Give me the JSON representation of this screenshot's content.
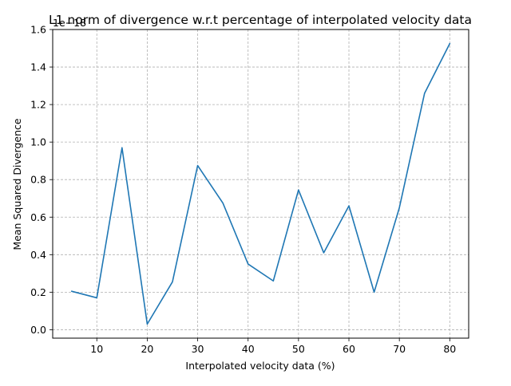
{
  "chart_data": {
    "type": "line",
    "title": "L1 norm of divergence w.r.t percentage of interpolated velocity data",
    "xlabel": "Interpolated velocity data (%)",
    "ylabel": "Mean Squared Divergence",
    "y_offset_label": "1e−18",
    "y_scale_factor": 1e-18,
    "xlim": [
      1.25,
      83.75
    ],
    "ylim": [
      -0.045,
      1.6
    ],
    "x_ticks": [
      10,
      20,
      30,
      40,
      50,
      60,
      70,
      80
    ],
    "y_ticks": [
      0.0,
      0.2,
      0.4,
      0.6,
      0.8,
      1.0,
      1.2,
      1.4,
      1.6
    ],
    "grid": true,
    "line_color": "#1f77b4",
    "series": [
      {
        "x": [
          5,
          10,
          15,
          20,
          25,
          30,
          35,
          40,
          45,
          50,
          55,
          60,
          65,
          70,
          75,
          80
        ],
        "y": [
          0.205,
          0.17,
          0.97,
          0.03,
          0.255,
          0.875,
          0.675,
          0.35,
          0.26,
          0.745,
          0.41,
          0.66,
          0.2,
          0.65,
          1.26,
          1.525
        ]
      }
    ]
  }
}
